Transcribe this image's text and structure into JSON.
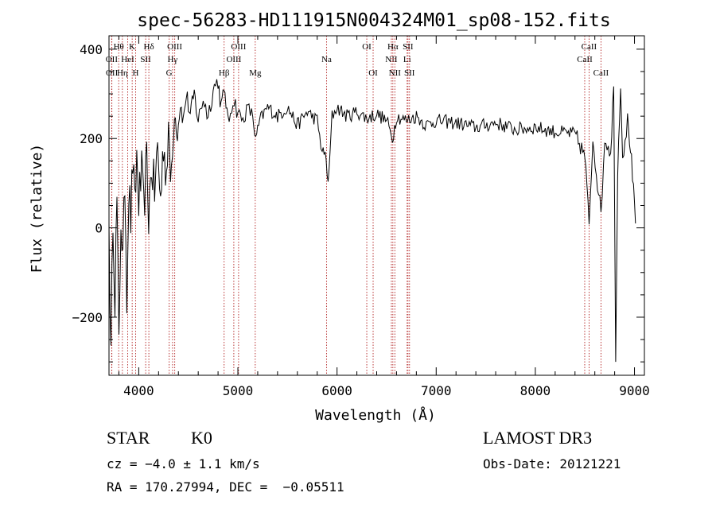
{
  "chart_data": {
    "type": "line",
    "title": "spec-56283-HD111915N004324M01_sp08-152.fits",
    "xlabel": "Wavelength (Å)",
    "ylabel": "Flux (relative)",
    "xlim": [
      3700,
      9100
    ],
    "ylim": [
      -330,
      430
    ],
    "x_ticks": [
      4000,
      5000,
      6000,
      7000,
      8000,
      9000
    ],
    "x_tick_labels": [
      "4000",
      "5000",
      "6000",
      "7000",
      "8000",
      "9000"
    ],
    "y_ticks": [
      -200,
      0,
      200,
      400
    ],
    "y_tick_labels": [
      "−200",
      "0",
      "200",
      "400"
    ],
    "grid": false,
    "spectrum_anchor_points": [
      [
        3700,
        10
      ],
      [
        3720,
        -300
      ],
      [
        3740,
        40
      ],
      [
        3760,
        -150
      ],
      [
        3780,
        60
      ],
      [
        3800,
        -270
      ],
      [
        3820,
        30
      ],
      [
        3840,
        -80
      ],
      [
        3860,
        110
      ],
      [
        3880,
        -140
      ],
      [
        3900,
        90
      ],
      [
        3920,
        20
      ],
      [
        3940,
        150
      ],
      [
        3960,
        40
      ],
      [
        3980,
        160
      ],
      [
        4000,
        60
      ],
      [
        4030,
        120
      ],
      [
        4050,
        40
      ],
      [
        4080,
        150
      ],
      [
        4100,
        30
      ],
      [
        4130,
        140
      ],
      [
        4160,
        80
      ],
      [
        4190,
        180
      ],
      [
        4220,
        60
      ],
      [
        4250,
        190
      ],
      [
        4280,
        120
      ],
      [
        4300,
        230
      ],
      [
        4320,
        110
      ],
      [
        4340,
        160
      ],
      [
        4360,
        260
      ],
      [
        4390,
        210
      ],
      [
        4420,
        280
      ],
      [
        4450,
        240
      ],
      [
        4480,
        300
      ],
      [
        4520,
        250
      ],
      [
        4560,
        300
      ],
      [
        4600,
        240
      ],
      [
        4650,
        290
      ],
      [
        4700,
        250
      ],
      [
        4750,
        310
      ],
      [
        4800,
        330
      ],
      [
        4830,
        270
      ],
      [
        4870,
        310
      ],
      [
        4900,
        230
      ],
      [
        4950,
        290
      ],
      [
        5000,
        260
      ],
      [
        5050,
        240
      ],
      [
        5100,
        270
      ],
      [
        5150,
        250
      ],
      [
        5180,
        195
      ],
      [
        5220,
        240
      ],
      [
        5300,
        270
      ],
      [
        5400,
        250
      ],
      [
        5500,
        270
      ],
      [
        5600,
        230
      ],
      [
        5700,
        260
      ],
      [
        5800,
        240
      ],
      [
        5850,
        170
      ],
      [
        5890,
        160
      ],
      [
        5910,
        90
      ],
      [
        5950,
        250
      ],
      [
        6000,
        270
      ],
      [
        6100,
        250
      ],
      [
        6200,
        260
      ],
      [
        6300,
        245
      ],
      [
        6400,
        255
      ],
      [
        6500,
        240
      ],
      [
        6560,
        200
      ],
      [
        6600,
        250
      ],
      [
        6700,
        240
      ],
      [
        6800,
        250
      ],
      [
        6900,
        230
      ],
      [
        7000,
        240
      ],
      [
        7200,
        235
      ],
      [
        7400,
        225
      ],
      [
        7600,
        235
      ],
      [
        7800,
        220
      ],
      [
        8000,
        225
      ],
      [
        8200,
        215
      ],
      [
        8400,
        210
      ],
      [
        8500,
        160
      ],
      [
        8542,
        10
      ],
      [
        8580,
        200
      ],
      [
        8662,
        30
      ],
      [
        8700,
        200
      ],
      [
        8760,
        170
      ],
      [
        8790,
        320
      ],
      [
        8810,
        -280
      ],
      [
        8830,
        120
      ],
      [
        8860,
        330
      ],
      [
        8880,
        160
      ],
      [
        8930,
        240
      ],
      [
        8960,
        180
      ],
      [
        8990,
        80
      ],
      [
        9010,
        10
      ]
    ],
    "line_markers": [
      {
        "name": "Hθ",
        "wl": 3798,
        "row": 1
      },
      {
        "name": "Hη",
        "wl": 3835,
        "row": 3
      },
      {
        "name": "HeI",
        "wl": 3889,
        "row": 2
      },
      {
        "name": "K",
        "wl": 3934,
        "row": 1
      },
      {
        "name": "H",
        "wl": 3969,
        "row": 3
      },
      {
        "name": "SII",
        "wl": 4070,
        "row": 2
      },
      {
        "name": "Hδ",
        "wl": 4102,
        "row": 1
      },
      {
        "name": "G",
        "wl": 4307,
        "row": 3
      },
      {
        "name": "Hγ",
        "wl": 4341,
        "row": 2
      },
      {
        "name": "OIII",
        "wl": 4363,
        "row": 1
      },
      {
        "name": "Hβ",
        "wl": 4861,
        "row": 3
      },
      {
        "name": "OIII",
        "wl": 4959,
        "row": 2
      },
      {
        "name": "OIII",
        "wl": 5007,
        "row": 1
      },
      {
        "name": "Mg",
        "wl": 5175,
        "row": 3
      },
      {
        "name": "Na",
        "wl": 5894,
        "row": 2
      },
      {
        "name": "OI",
        "wl": 6300,
        "row": 1
      },
      {
        "name": "OI",
        "wl": 6364,
        "row": 3
      },
      {
        "name": "NII",
        "wl": 6548,
        "row": 2
      },
      {
        "name": "Hα",
        "wl": 6563,
        "row": 1
      },
      {
        "name": "NII",
        "wl": 6583,
        "row": 3
      },
      {
        "name": "Li",
        "wl": 6707,
        "row": 2
      },
      {
        "name": "SII",
        "wl": 6716,
        "row": 1
      },
      {
        "name": "SII",
        "wl": 6731,
        "row": 3
      },
      {
        "name": "CaII",
        "wl": 8498,
        "row": 2
      },
      {
        "name": "CaII",
        "wl": 8542,
        "row": 1
      },
      {
        "name": "CaII",
        "wl": 8662,
        "row": 3
      },
      {
        "name": "OII",
        "wl": 3727,
        "row": 2
      },
      {
        "name": "OII",
        "wl": 3729,
        "row": 3
      }
    ]
  },
  "footer": {
    "object_class": "STAR",
    "subclass": "K0",
    "redshift": "cz = −4.0 ± 1.1 km/s",
    "coordinates": "RA = 170.27994, DEC =  −0.05511",
    "survey": "LAMOST DR3",
    "obs_date": "Obs-Date: 20121221"
  }
}
